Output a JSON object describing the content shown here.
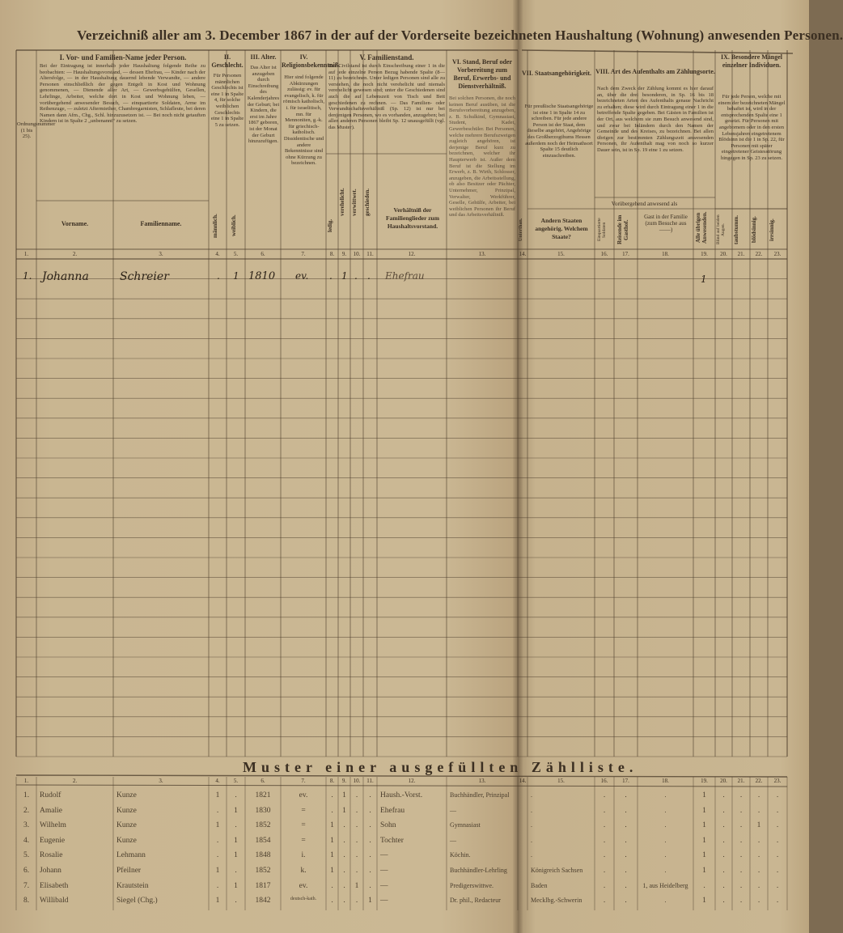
{
  "title": "Verzeichniß aller am 3. December 1867 in der auf der Vorderseite bezeichneten Haushaltung (Wohnung) anwesenden Personen.",
  "headers": {
    "c1": "Ordnungsnummer (1 bis 25).",
    "I_title": "I. Vor- und Familien-Name jeder Person.",
    "I_text": "Bei der Eintragung ist innerhalb jeder Haushaltung folgende Reihe zu beobachten: — Haushaltungsvorstand, — dessen Ehefrau, — Kinder nach der Altersfolge, — in der Haushaltung dauernd lebende Verwandte, — andere Personen einschließlich der gegen Entgelt in Kost und Wohnung genommenen, — Dienende aller Art, — Gewerbsgehülfen, Gesellen, Lehrlinge, Arbeiter, welche dort in Kost und Wohnung leben, — vorübergehend anwesender Besuch, — einquartierte Soldaten, Arme im Reihenzuge, — zuletzt Aftermiether, Chambregarnisten, Schlafleute, bei deren Namen dann Afm., Chg., Schl. hinzuzusetzen ist. — Bei noch nicht getauften Kindern ist in Spalte 2 „unbenannt“ zu setzen.",
    "vorname": "Vorname.",
    "familienname": "Familienname.",
    "II_title": "II. Geschlecht.",
    "II_text": "Für Personen männlichen Geschlechts ist eine 1 in Spalte 4, für solche weiblichen Geschlechts eine 1 in Spalte 5 zu setzen.",
    "maennlich": "männlich.",
    "weiblich": "weiblich.",
    "III_title": "III. Alter.",
    "III_text": "Das Alter ist anzugeben durch Einschreibung des Kalenderjahres der Geburt; bei Kindern, die erst im Jahre 1867 geboren, ist der Monat der Geburt hinzuzufügen.",
    "IV_title": "IV. Religionsbekenntniß.",
    "IV_text": "Hier sind folgende Abkürzungen zulässig: ev. für evangelisch, k. für römisch katholisch, i. für israelitisch, mn. für Mennoniten, g.-k. für griechisch-katholisch. Dissidentische und andere Bekenntnisse sind ohne Kürzung zu bezeichnen.",
    "V_title": "V. Familienstand.",
    "V_text": "Der Civilstand ist durch Einschreibung einer 1 in die auf jede einzelne Person Bezug habende Spalte (8—11) zu bezeichnen. Unter ledigen Personen sind alle zu verstehen, die noch nicht verehelicht und niemals verehelicht gewesen sind; unter die Geschiedenen sind auch die auf Lebenszeit von Tisch und Bett geschiedenen zu rechnen. — Das Familien- oder Verwandtschaftsverhältniß (Sp. 12) ist nur bei denjenigen Personen, wo es vorhanden, anzugeben; bei allen anderen Personen bleibt Sp. 12 unausgefüllt (vgl. das Muster).",
    "ledig": "ledig.",
    "verehelicht": "verehelicht.",
    "verwittwet": "verwittwet.",
    "geschieden": "geschieden.",
    "verhaeltniss": "Verhältniß der Familienglieder zum Haushaltsvorstand.",
    "VI_title": "VI. Stand, Beruf oder Vorbereitung zum Beruf, Erwerbs- und Dienstverhältniß.",
    "VI_text": "Bei solchen Personen, die noch keinen Beruf ausüben, ist die Berufsvorbereitung anzugeben, z. B. Schulkind, Gymnasiast, Student, Kadet, Gewerbeschüler. Bei Personen, welche mehrere Berufszweigen zugleich angehören, ist derjenige Beruf kurz zu bezeichnen, welcher ihr Haupterwerb ist. Außer dem Beruf ist die Stellung im Erwerb, z. B. Wirth, Schlosser, anzugeben, die Arbeitsstellung, ob also Besitzer oder Pächter, Unternehmer, Prinzipal, Verwalter, Werkführer, Geselle, Gehülfe, Arbeiter, bei weiblichen Personen ihr Beruf und das Arbeitsverhältniß.",
    "VII_title": "VII. Staatsangehörigkeit.",
    "VII_text": "Für preußische Staatsangehörige ist eine 1 in Spalte 14 zu schreiben. Für jede andere Person ist der Staat, dem dieselbe angehört, Angehörige des Großherzogthums Hessen außerdem noch der Heimathsort Spalte 15 deutlich einzuschreiben.",
    "unterthan": "Unterthan.",
    "andern_staaten": "Andern Staaten angehörig. Welchem Staate?",
    "VIII_title": "VIII. Art des Aufenthalts am Zählungsorte.",
    "VIII_text": "Nach dem Zweck der Zählung kommt es hier darauf an, über die drei besonderen, in Sp. 16 bis 18 bezeichneten Arten des Aufenthalts genaue Nachricht zu erhalten; diese wird durch Eintragung einer 1 in die betreffende Spalte gegeben. Bei Gästen in Familien ist der Ort, aus welchem sie zum Besuch anwesend sind, und zwar bei Inländern durch den Namen der Gemeinde und des Kreises, zu bezeichnen. Bei allen übrigen zur bestimmten Zählungszeit anwesenden Personen, ihr Aufenthalt mag von noch so kurzer Dauer sein, ist in Sp. 19 eine 1 zu setzen.",
    "voruebergehend": "Vorübergehend anwesend als",
    "c16": "Einquartierte Soldaten",
    "reisende": "Reisende im Gasthof.",
    "gast": "Gast in der Familie (zum Besuche aus ——)",
    "alle_uebrigen": "Alle übrigen Anwesenden.",
    "IX_title": "IX. Besondere Mängel einzelner Individuen.",
    "IX_text": "Für jede Person, welche mit einem der bezeichneten Mängel behaftet ist, wird in der entsprechenden Spalte eine 1 gesetzt. Für Personen mit angebornem oder in den ersten Lebensjahren eingetretenem Blödsinn ist die 1 in Sp. 22, für Personen mit später eingetretener Geistesstörung hingegen in Sp. 23 zu setzen.",
    "blind": "Blind auf beiden Augen.",
    "taubstumm": "taubstumm.",
    "bloedsinnig": "blödsinnig.",
    "irrsinnig": "irrsinnig."
  },
  "column_numbers": [
    "1.",
    "2.",
    "3.",
    "4.",
    "5.",
    "6.",
    "7.",
    "8.",
    "9.",
    "10.",
    "11.",
    "12.",
    "13.",
    "14.",
    "15.",
    "16.",
    "17.",
    "18.",
    "19.",
    "20.",
    "21.",
    "22.",
    "23."
  ],
  "entries": [
    {
      "nr": "1.",
      "vorname": "Johanna",
      "familienname": "Schreier",
      "m": ".",
      "w": "1",
      "jahr": "1810",
      "religion": "ev.",
      "ledig": ".",
      "verh": "1",
      "verw": ".",
      "gesch": ".",
      "verhaeltnis": "Ehefrau",
      "c19": "1"
    }
  ],
  "muster": {
    "title": "Muster einer ausgefüllten Zählliste.",
    "rows": [
      [
        "1.",
        "Rudolf",
        "Kunze",
        "1",
        ".",
        "1821",
        "ev.",
        ".",
        "1",
        ".",
        ".",
        "Haush.-Vorst.",
        "Buchhändler, Prinzipal",
        "",
        ".",
        ".",
        ".",
        ".",
        "1",
        ".",
        ".",
        ".",
        "."
      ],
      [
        "2.",
        "Amalie",
        "Kunze",
        ".",
        "1",
        "1830",
        "=",
        ".",
        "1",
        ".",
        ".",
        "Ehefrau",
        "—",
        "",
        ".",
        ".",
        ".",
        ".",
        "1",
        ".",
        ".",
        ".",
        "."
      ],
      [
        "3.",
        "Wilhelm",
        "Kunze",
        "1",
        ".",
        "1852",
        "=",
        "1",
        ".",
        ".",
        ".",
        "Sohn",
        "Gymnasiast",
        "",
        ".",
        ".",
        ".",
        ".",
        "1",
        ".",
        ".",
        "1",
        "."
      ],
      [
        "4.",
        "Eugenie",
        "Kunze",
        ".",
        "1",
        "1854",
        "=",
        "1",
        ".",
        ".",
        ".",
        "Tochter",
        "—",
        "",
        ".",
        ".",
        ".",
        ".",
        "1",
        ".",
        ".",
        ".",
        "."
      ],
      [
        "5.",
        "Rosalie",
        "Lehmann",
        ".",
        "1",
        "1848",
        "i.",
        "1",
        ".",
        ".",
        ".",
        "—",
        "Köchin.",
        "",
        ".",
        ".",
        ".",
        ".",
        "1",
        ".",
        ".",
        ".",
        "."
      ],
      [
        "6.",
        "Johann",
        "Pfeilner",
        "1",
        ".",
        "1852",
        "k.",
        "1",
        ".",
        ".",
        ".",
        "—",
        "Buchhändler-Lehrling",
        "",
        "Königreich Sachsen",
        ".",
        ".",
        ".",
        "1",
        ".",
        ".",
        ".",
        "."
      ],
      [
        "7.",
        "Elisabeth",
        "Krautstein",
        ".",
        "1",
        "1817",
        "ev.",
        ".",
        ".",
        "1",
        ".",
        "—",
        "Predigerswittwe.",
        "",
        "Baden",
        ".",
        ".",
        "1, aus Heidelberg",
        ".",
        ".",
        ".",
        ".",
        "."
      ],
      [
        "8.",
        "Willibald",
        "Siegel (Chg.)",
        "1",
        ".",
        "1842",
        "deutsch-kath.",
        ".",
        ".",
        ".",
        "1",
        "—",
        "Dr. phil., Redacteur",
        "",
        "Mecklbg.-Schwerin",
        ".",
        ".",
        ".",
        "1",
        ".",
        ".",
        ".",
        "."
      ]
    ]
  },
  "colors": {
    "paper": "#c8b48f",
    "ink": "#3b2f22"
  }
}
